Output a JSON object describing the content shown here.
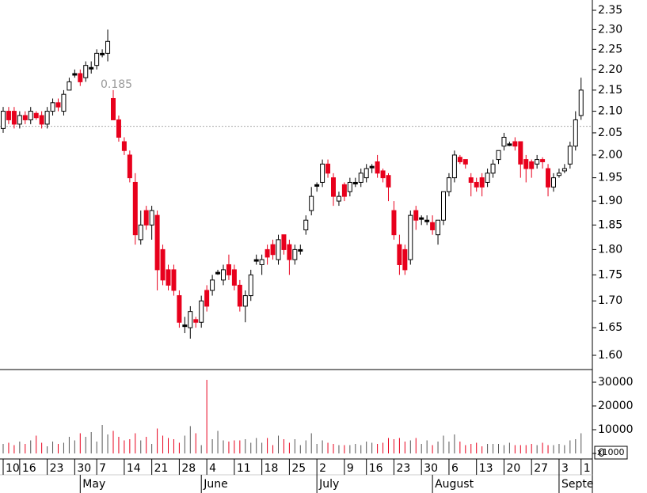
{
  "chart_data": {
    "type": "candlestick",
    "annotation": "0.185",
    "reference_line": 2.065,
    "log_scale": true,
    "up_color": "#ffffff",
    "down_color": "#e8001c",
    "doji_color": "#000000",
    "outline_color": "#000000",
    "ylim": [
      1.6,
      2.35
    ],
    "yticks": [
      {
        "value": 1.6,
        "label": "1.60"
      },
      1.65,
      {
        "value": 1.7,
        "label": "1.70"
      },
      1.75,
      {
        "value": 1.8,
        "label": "1.80"
      },
      1.85,
      {
        "value": 1.9,
        "label": "1.90"
      },
      1.95,
      {
        "value": 2.0,
        "label": "2.00"
      },
      2.05,
      {
        "value": 2.1,
        "label": "2.10"
      },
      2.15,
      {
        "value": 2.2,
        "label": "2.20"
      },
      2.25,
      {
        "value": 2.3,
        "label": "2.30"
      },
      2.35
    ],
    "categories": [
      "10",
      null,
      null,
      "16",
      null,
      null,
      null,
      null,
      "23",
      null,
      null,
      null,
      null,
      "30",
      null,
      null,
      null,
      "7",
      null,
      null,
      null,
      null,
      "14",
      null,
      null,
      null,
      null,
      "21",
      null,
      null,
      null,
      null,
      "28",
      null,
      null,
      null,
      null,
      "4",
      null,
      null,
      null,
      null,
      "11",
      null,
      null,
      null,
      null,
      "18",
      null,
      null,
      null,
      null,
      "25",
      null,
      null,
      null,
      null,
      "2",
      null,
      null,
      null,
      null,
      "9",
      null,
      null,
      null,
      "16",
      null,
      null,
      null,
      null,
      "23",
      null,
      null,
      null,
      null,
      "30",
      null,
      null,
      null,
      null,
      "6",
      null,
      null,
      null,
      null,
      "13",
      null,
      null,
      null,
      null,
      "20",
      null,
      null,
      null,
      null,
      "27",
      null,
      null,
      null,
      null,
      "3",
      null,
      null,
      null,
      "1"
    ],
    "months": [
      null,
      null,
      null,
      null,
      null,
      null,
      null,
      null,
      null,
      null,
      null,
      null,
      null,
      null,
      "May",
      null,
      null,
      null,
      null,
      null,
      null,
      null,
      null,
      null,
      null,
      null,
      null,
      null,
      null,
      null,
      null,
      null,
      null,
      null,
      null,
      null,
      "June",
      null,
      null,
      null,
      null,
      null,
      null,
      null,
      null,
      null,
      null,
      null,
      null,
      null,
      null,
      null,
      null,
      null,
      null,
      null,
      null,
      "July",
      null,
      null,
      null,
      null,
      null,
      null,
      null,
      null,
      null,
      null,
      null,
      null,
      null,
      null,
      null,
      null,
      null,
      null,
      null,
      null,
      "August",
      null,
      null,
      null,
      null,
      null,
      null,
      null,
      null,
      null,
      null,
      null,
      null,
      null,
      null,
      null,
      null,
      null,
      null,
      null,
      null,
      null,
      null,
      "Septe",
      null,
      null,
      null,
      null
    ],
    "open": [
      2.06,
      2.1,
      2.1,
      2.07,
      2.09,
      2.08,
      2.095,
      2.09,
      2.07,
      2.1,
      2.12,
      2.1,
      2.15,
      2.19,
      2.19,
      2.18,
      2.205,
      2.21,
      2.24,
      2.24,
      2.13,
      2.08,
      2.03,
      2.0,
      1.94,
      1.82,
      1.88,
      1.85,
      1.87,
      1.8,
      1.76,
      1.76,
      1.71,
      1.655,
      1.65,
      1.665,
      1.66,
      1.72,
      1.72,
      1.755,
      1.74,
      1.77,
      1.76,
      1.73,
      1.69,
      1.71,
      1.78,
      1.77,
      1.8,
      1.81,
      1.78,
      1.83,
      1.81,
      1.78,
      1.8,
      1.84,
      1.88,
      1.935,
      1.94,
      1.98,
      1.95,
      1.9,
      1.935,
      1.92,
      1.94,
      1.94,
      1.95,
      1.975,
      1.985,
      1.965,
      1.955,
      1.88,
      1.81,
      1.8,
      1.78,
      1.88,
      1.865,
      1.86,
      1.855,
      1.83,
      1.86,
      1.92,
      1.95,
      1.995,
      1.99,
      1.95,
      1.94,
      1.95,
      1.94,
      1.96,
      1.99,
      2.02,
      2.025,
      2.03,
      2.03,
      1.99,
      1.985,
      1.98,
      1.99,
      1.97,
      1.93,
      1.955,
      1.965,
      1.98,
      2.02,
      2.09
    ],
    "high": [
      2.11,
      2.11,
      2.11,
      2.1,
      2.1,
      2.11,
      2.1,
      2.1,
      2.11,
      2.13,
      2.13,
      2.15,
      2.18,
      2.2,
      2.2,
      2.22,
      2.22,
      2.25,
      2.25,
      2.3,
      2.15,
      2.09,
      2.04,
      2.01,
      1.96,
      1.88,
      1.89,
      1.89,
      1.88,
      1.81,
      1.77,
      1.77,
      1.72,
      1.67,
      1.69,
      1.67,
      1.71,
      1.73,
      1.75,
      1.76,
      1.77,
      1.79,
      1.77,
      1.74,
      1.72,
      1.76,
      1.79,
      1.79,
      1.81,
      1.82,
      1.83,
      1.83,
      1.82,
      1.81,
      1.81,
      1.87,
      1.93,
      1.94,
      1.99,
      1.99,
      1.96,
      1.92,
      1.94,
      1.95,
      1.95,
      1.97,
      1.98,
      1.98,
      2.0,
      1.97,
      1.96,
      1.9,
      1.83,
      1.81,
      1.88,
      1.89,
      1.87,
      1.87,
      1.87,
      1.86,
      1.92,
      1.96,
      2.01,
      2.0,
      1.99,
      1.96,
      1.95,
      1.96,
      1.97,
      1.99,
      2.01,
      2.05,
      2.03,
      2.04,
      2.03,
      2.0,
      1.99,
      2.0,
      1.995,
      1.98,
      1.96,
      1.97,
      1.98,
      2.03,
      2.1,
      2.18
    ],
    "low": [
      2.05,
      2.07,
      2.06,
      2.06,
      2.07,
      2.07,
      2.08,
      2.06,
      2.06,
      2.09,
      2.1,
      2.09,
      2.15,
      2.18,
      2.16,
      2.17,
      2.19,
      2.2,
      2.23,
      2.22,
      2.08,
      2.03,
      2.0,
      1.94,
      1.81,
      1.81,
      1.84,
      1.82,
      1.72,
      1.73,
      1.72,
      1.71,
      1.65,
      1.64,
      1.63,
      1.65,
      1.65,
      1.68,
      1.71,
      1.75,
      1.73,
      1.74,
      1.72,
      1.68,
      1.66,
      1.7,
      1.77,
      1.75,
      1.77,
      1.78,
      1.77,
      1.79,
      1.75,
      1.77,
      1.79,
      1.83,
      1.87,
      1.92,
      1.93,
      1.95,
      1.89,
      1.89,
      1.9,
      1.91,
      1.93,
      1.93,
      1.94,
      1.96,
      1.95,
      1.94,
      1.9,
      1.82,
      1.75,
      1.75,
      1.77,
      1.84,
      1.85,
      1.85,
      1.83,
      1.81,
      1.85,
      1.91,
      1.94,
      1.98,
      1.97,
      1.91,
      1.92,
      1.91,
      1.93,
      1.95,
      1.98,
      2.01,
      2.02,
      2.01,
      1.95,
      1.94,
      1.95,
      1.97,
      1.97,
      1.91,
      1.92,
      1.95,
      1.96,
      1.97,
      2.01,
      2.08
    ],
    "close": [
      2.1,
      2.08,
      2.07,
      2.09,
      2.08,
      2.1,
      2.085,
      2.07,
      2.1,
      2.12,
      2.11,
      2.14,
      2.17,
      2.19,
      2.17,
      2.21,
      2.205,
      2.24,
      2.24,
      2.27,
      2.08,
      2.04,
      2.01,
      1.95,
      1.83,
      1.85,
      1.85,
      1.88,
      1.76,
      1.74,
      1.73,
      1.72,
      1.66,
      1.655,
      1.68,
      1.66,
      1.7,
      1.69,
      1.74,
      1.755,
      1.76,
      1.75,
      1.73,
      1.69,
      1.71,
      1.75,
      1.78,
      1.78,
      1.785,
      1.79,
      1.82,
      1.8,
      1.78,
      1.8,
      1.8,
      1.86,
      1.91,
      1.935,
      1.98,
      1.96,
      1.91,
      1.91,
      1.91,
      1.94,
      1.94,
      1.96,
      1.97,
      1.975,
      1.96,
      1.95,
      1.93,
      1.83,
      1.77,
      1.76,
      1.87,
      1.86,
      1.865,
      1.86,
      1.84,
      1.86,
      1.92,
      1.95,
      2.0,
      1.985,
      1.98,
      1.94,
      1.93,
      1.93,
      1.96,
      1.98,
      2.01,
      2.04,
      2.025,
      2.02,
      1.98,
      1.97,
      1.97,
      1.99,
      1.985,
      1.93,
      1.95,
      1.96,
      1.97,
      2.02,
      2.08,
      2.15
    ],
    "volume": {
      "unit_label": "x1000",
      "ylim": [
        0,
        30000
      ],
      "yticks": [
        0,
        10000,
        20000,
        30000
      ],
      "up_color": "#555555",
      "down_color": "#e8001c",
      "values": [
        4000,
        4500,
        3500,
        5000,
        4000,
        5500,
        7500,
        4500,
        3000,
        5000,
        4000,
        4500,
        7000,
        5500,
        8500,
        7000,
        9000,
        5000,
        12000,
        8000,
        9500,
        7000,
        5500,
        6000,
        8500,
        5500,
        7000,
        4000,
        10500,
        7500,
        6500,
        6000,
        4500,
        7500,
        11500,
        8500,
        3500,
        31000,
        6000,
        9500,
        5500,
        5000,
        5500,
        5500,
        6000,
        4500,
        6500,
        4500,
        6500,
        3500,
        7500,
        6000,
        4500,
        6000,
        3500,
        5500,
        8500,
        4000,
        5500,
        4500,
        4000,
        3500,
        3500,
        3500,
        4000,
        3500,
        5000,
        4500,
        4000,
        4500,
        6500,
        6000,
        6500,
        5000,
        5500,
        6500,
        4000,
        5500,
        3500,
        5000,
        7500,
        5000,
        8000,
        5000,
        3500,
        4000,
        4500,
        3000,
        4000,
        4000,
        4000,
        3500,
        4500,
        3500,
        3500,
        3500,
        4000,
        3500,
        4500,
        3500,
        3500,
        4000,
        3500,
        5500,
        6000,
        8500
      ]
    }
  }
}
